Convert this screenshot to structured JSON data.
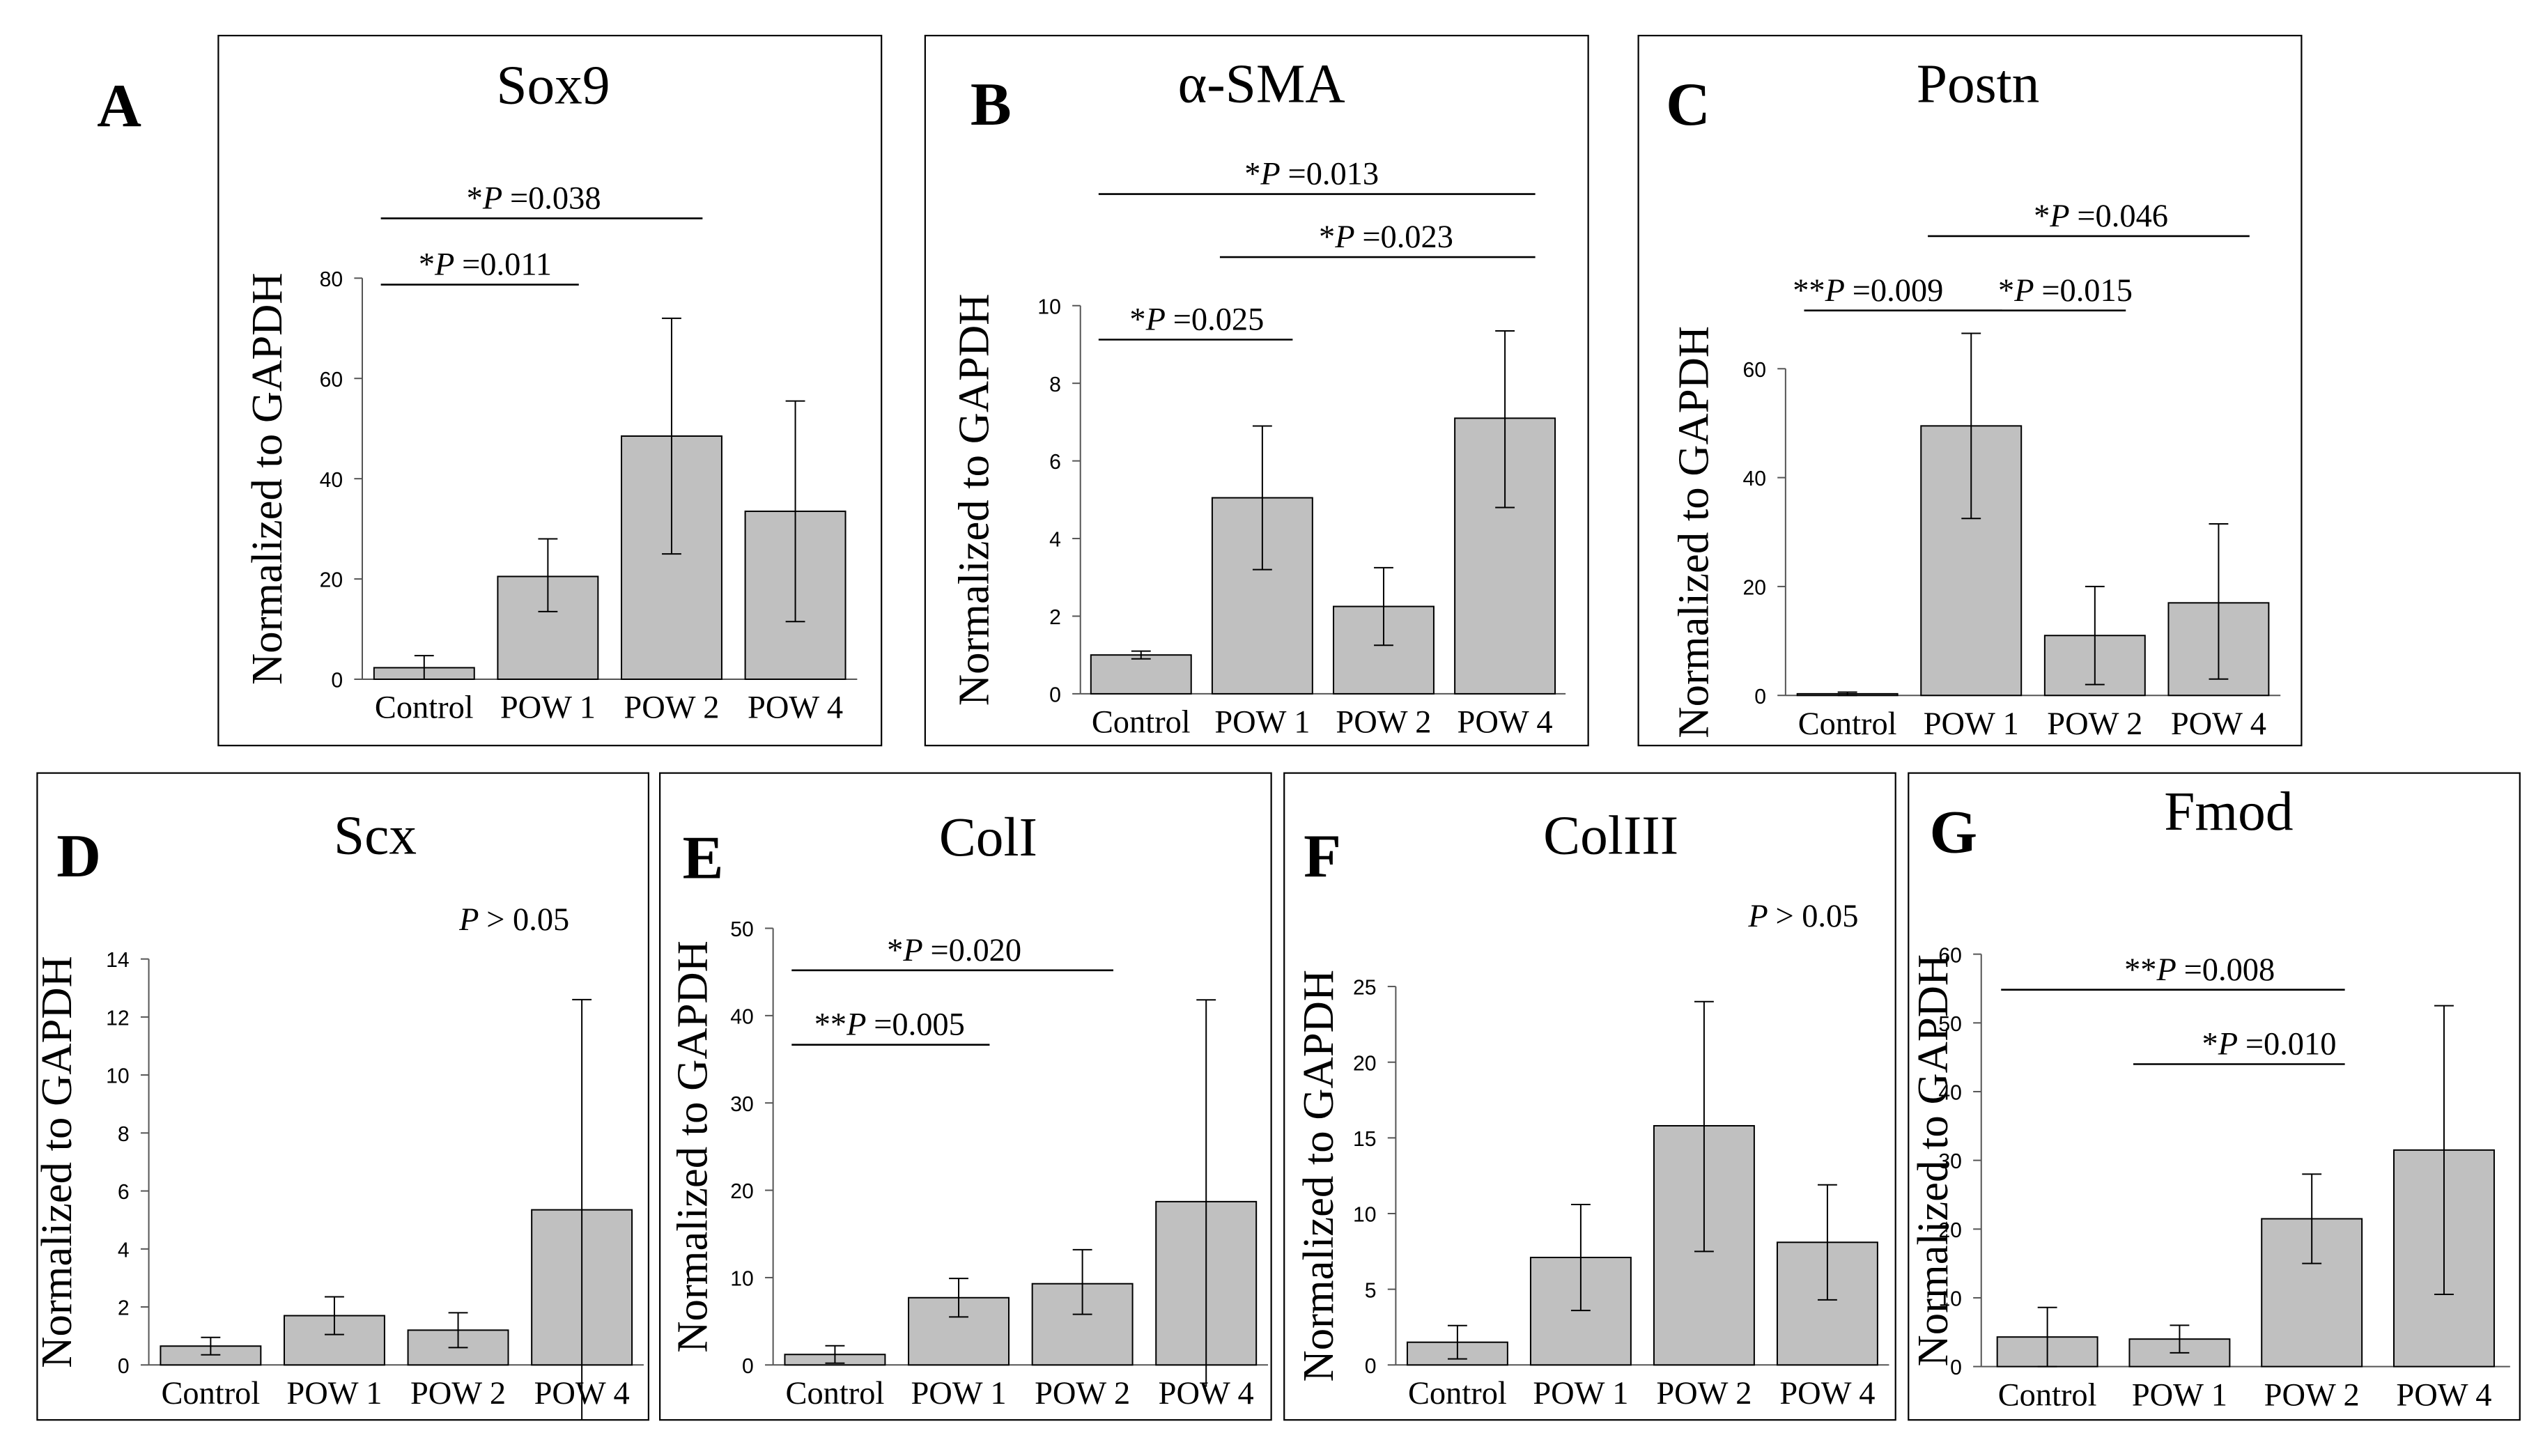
{
  "figure": {
    "ylabel": "Normalized to GAPDH",
    "categories": [
      "Control",
      "POW 1",
      "POW 2",
      "POW 4"
    ],
    "bar_color": "#c0c0c0"
  },
  "chart_data": [
    {
      "panel": "A",
      "title": "Sox9",
      "type": "bar",
      "categories": [
        "Control",
        "POW 1",
        "POW 2",
        "POW 4"
      ],
      "values": [
        2.3,
        20.5,
        48.5,
        33.5
      ],
      "err_low": [
        0,
        13.5,
        25,
        11.5
      ],
      "err_high": [
        4.7,
        28,
        72,
        55.5
      ],
      "ylabel": "Normalized to GAPDH",
      "ylim": [
        0,
        80
      ],
      "yticks": [
        0,
        20,
        40,
        60,
        80
      ],
      "annotations": [
        {
          "stars": "*",
          "p_text": "=0.011",
          "from": 0,
          "to": 1
        },
        {
          "stars": "*",
          "p_text": "=0.038",
          "from": 0,
          "to": 2
        }
      ]
    },
    {
      "panel": "B",
      "title": "α-SMA",
      "type": "bar",
      "categories": [
        "Control",
        "POW 1",
        "POW 2",
        "POW 4"
      ],
      "values": [
        1.0,
        5.05,
        2.25,
        7.1
      ],
      "err_low": [
        0.9,
        3.2,
        1.25,
        4.8
      ],
      "err_high": [
        1.1,
        6.9,
        3.25,
        9.35
      ],
      "ylabel": "Normalized to GAPDH",
      "ylim": [
        0,
        10
      ],
      "yticks": [
        0,
        2,
        4,
        6,
        8,
        10
      ],
      "annotations": [
        {
          "stars": "*",
          "p_text": "=0.025",
          "from": 0,
          "to": 1
        },
        {
          "stars": "*",
          "p_text": "=0.023",
          "from": 1,
          "to": 3
        },
        {
          "stars": "*",
          "p_text": "=0.013",
          "from": 0,
          "to": 3
        }
      ]
    },
    {
      "panel": "C",
      "title": "Postn",
      "type": "bar",
      "categories": [
        "Control",
        "POW 1",
        "POW 2",
        "POW 4"
      ],
      "values": [
        0.3,
        49.5,
        11,
        17
      ],
      "err_low": [
        0,
        32.5,
        2,
        3
      ],
      "err_high": [
        0.6,
        66.5,
        20,
        31.5
      ],
      "ylabel": "Normalized to GAPDH",
      "ylim": [
        0,
        60
      ],
      "yticks": [
        0,
        20,
        40,
        60
      ],
      "annotations": [
        {
          "stars": "**",
          "p_text": "=0.009",
          "from": 0,
          "to": 1
        },
        {
          "stars": "*",
          "p_text": "=0.015",
          "from": 1,
          "to": 2
        },
        {
          "stars": "*",
          "p_text": "=0.046",
          "from": 1,
          "to": 3
        }
      ]
    },
    {
      "panel": "D",
      "title": "Scx",
      "type": "bar",
      "categories": [
        "Control",
        "POW 1",
        "POW 2",
        "POW 4"
      ],
      "values": [
        0.65,
        1.7,
        1.2,
        5.35
      ],
      "err_low": [
        0.35,
        1.05,
        0.6,
        -1.9
      ],
      "err_high": [
        0.95,
        2.35,
        1.8,
        12.6
      ],
      "ylabel": "Normalized to GAPDH",
      "ylim": [
        0,
        14
      ],
      "yticks": [
        0,
        2,
        4,
        6,
        8,
        10,
        12,
        14
      ],
      "note": "> 0.05",
      "annotations": []
    },
    {
      "panel": "E",
      "title": "ColI",
      "type": "bar",
      "categories": [
        "Control",
        "POW 1",
        "POW 2",
        "POW 4"
      ],
      "values": [
        1.2,
        7.7,
        9.3,
        18.7
      ],
      "err_low": [
        0.2,
        5.5,
        5.8,
        -2.5
      ],
      "err_high": [
        2.2,
        9.9,
        13.2,
        41.8
      ],
      "ylabel": "Normalized to GAPDH",
      "ylim": [
        0,
        50
      ],
      "yticks": [
        0,
        10,
        20,
        30,
        40,
        50
      ],
      "annotations": [
        {
          "stars": "**",
          "p_text": "=0.005",
          "from": 0,
          "to": 1
        },
        {
          "stars": "*",
          "p_text": "=0.020",
          "from": 0,
          "to": 2
        }
      ]
    },
    {
      "panel": "F",
      "title": "ColIII",
      "type": "bar",
      "categories": [
        "Control",
        "POW 1",
        "POW 2",
        "POW 4"
      ],
      "values": [
        1.5,
        7.1,
        15.8,
        8.1
      ],
      "err_low": [
        0.4,
        3.6,
        7.5,
        4.3
      ],
      "err_high": [
        2.6,
        10.6,
        24.0,
        11.9
      ],
      "ylabel": "Normalized to GAPDH",
      "ylim": [
        0,
        25
      ],
      "yticks": [
        0,
        5,
        10,
        15,
        20,
        25
      ],
      "note": "> 0.05",
      "annotations": []
    },
    {
      "panel": "G",
      "title": "Fmod",
      "type": "bar",
      "categories": [
        "Control",
        "POW 1",
        "POW 2",
        "POW 4"
      ],
      "values": [
        4.3,
        4.0,
        21.5,
        31.5
      ],
      "err_low": [
        0,
        2,
        15,
        10.5
      ],
      "err_high": [
        8.6,
        6,
        28,
        52.5
      ],
      "ylabel": "Normalized to GAPDH",
      "ylim": [
        0,
        60
      ],
      "yticks": [
        0,
        10,
        20,
        30,
        40,
        50,
        60
      ],
      "annotations": [
        {
          "stars": "**",
          "p_text": "=0.008",
          "from": 0,
          "to": 2
        },
        {
          "stars": "*",
          "p_text": "=0.010",
          "from": 1,
          "to": 2
        }
      ]
    }
  ]
}
